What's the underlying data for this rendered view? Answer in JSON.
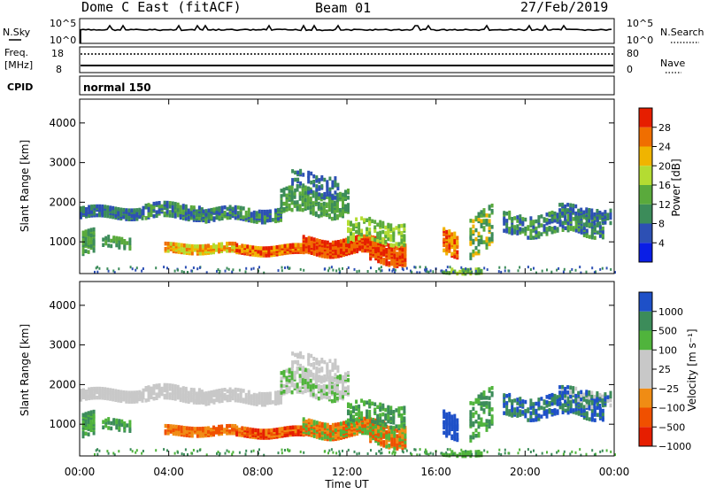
{
  "header": {
    "title": "Dome C East (fitACF)",
    "beam": "Beam 01",
    "date": "27/Feb/2019"
  },
  "panels": {
    "nsky": {
      "label": "N.Sky",
      "tick_top": "10^5",
      "tick_bottom": "10^0",
      "right_label": "N.Search",
      "right_tick_top": "10^5",
      "right_tick_bottom": "10^0"
    },
    "freq": {
      "label_line1": "Freq.",
      "label_line2": "[MHz]",
      "tick_top": "18",
      "tick_bottom": "8",
      "right_label": "Nave",
      "right_tick_top": "80",
      "right_tick_bottom": "0"
    },
    "cpid": {
      "label": "CPID",
      "value": "normal 150"
    }
  },
  "colors": {
    "power": [
      "#0a1ee6",
      "#2d50b4",
      "#3c8c5a",
      "#5aaa3c",
      "#b4dc32",
      "#f0b400",
      "#f06e00",
      "#e61e00"
    ],
    "velocity": [
      "#e61e00",
      "#f05000",
      "#f08c14",
      "#c8c8c8",
      "#c8c8c8",
      "#50b43c",
      "#3c8c5a",
      "#1e50c8"
    ]
  },
  "chart_data": [
    {
      "type": "heatmap",
      "name": "power",
      "ylabel": "Slant Range [km]",
      "ylim": [
        200,
        4600
      ],
      "yticks": [
        1000,
        2000,
        3000,
        4000
      ],
      "xticks": [
        "00:00",
        "04:00",
        "08:00",
        "12:00",
        "16:00",
        "20:00",
        "00:00"
      ],
      "colorbar_label": "Power [dB]",
      "colorbar_ticks": [
        "4",
        "8",
        "12",
        "16",
        "20",
        "24",
        "28"
      ],
      "colorbar_range": [
        0,
        32
      ]
    },
    {
      "type": "heatmap",
      "name": "velocity",
      "xlabel": "Time UT",
      "ylabel": "Slant Range [km]",
      "ylim": [
        200,
        4600
      ],
      "yticks": [
        1000,
        2000,
        3000,
        4000
      ],
      "xticks": [
        "00:00",
        "04:00",
        "08:00",
        "12:00",
        "16:00",
        "20:00",
        "00:00"
      ],
      "colorbar_label": "Velocity [m s⁻¹]",
      "colorbar_ticks": [
        "1000",
        "500",
        "100",
        "25",
        "−25",
        "−100",
        "−500",
        "−1000"
      ]
    }
  ]
}
